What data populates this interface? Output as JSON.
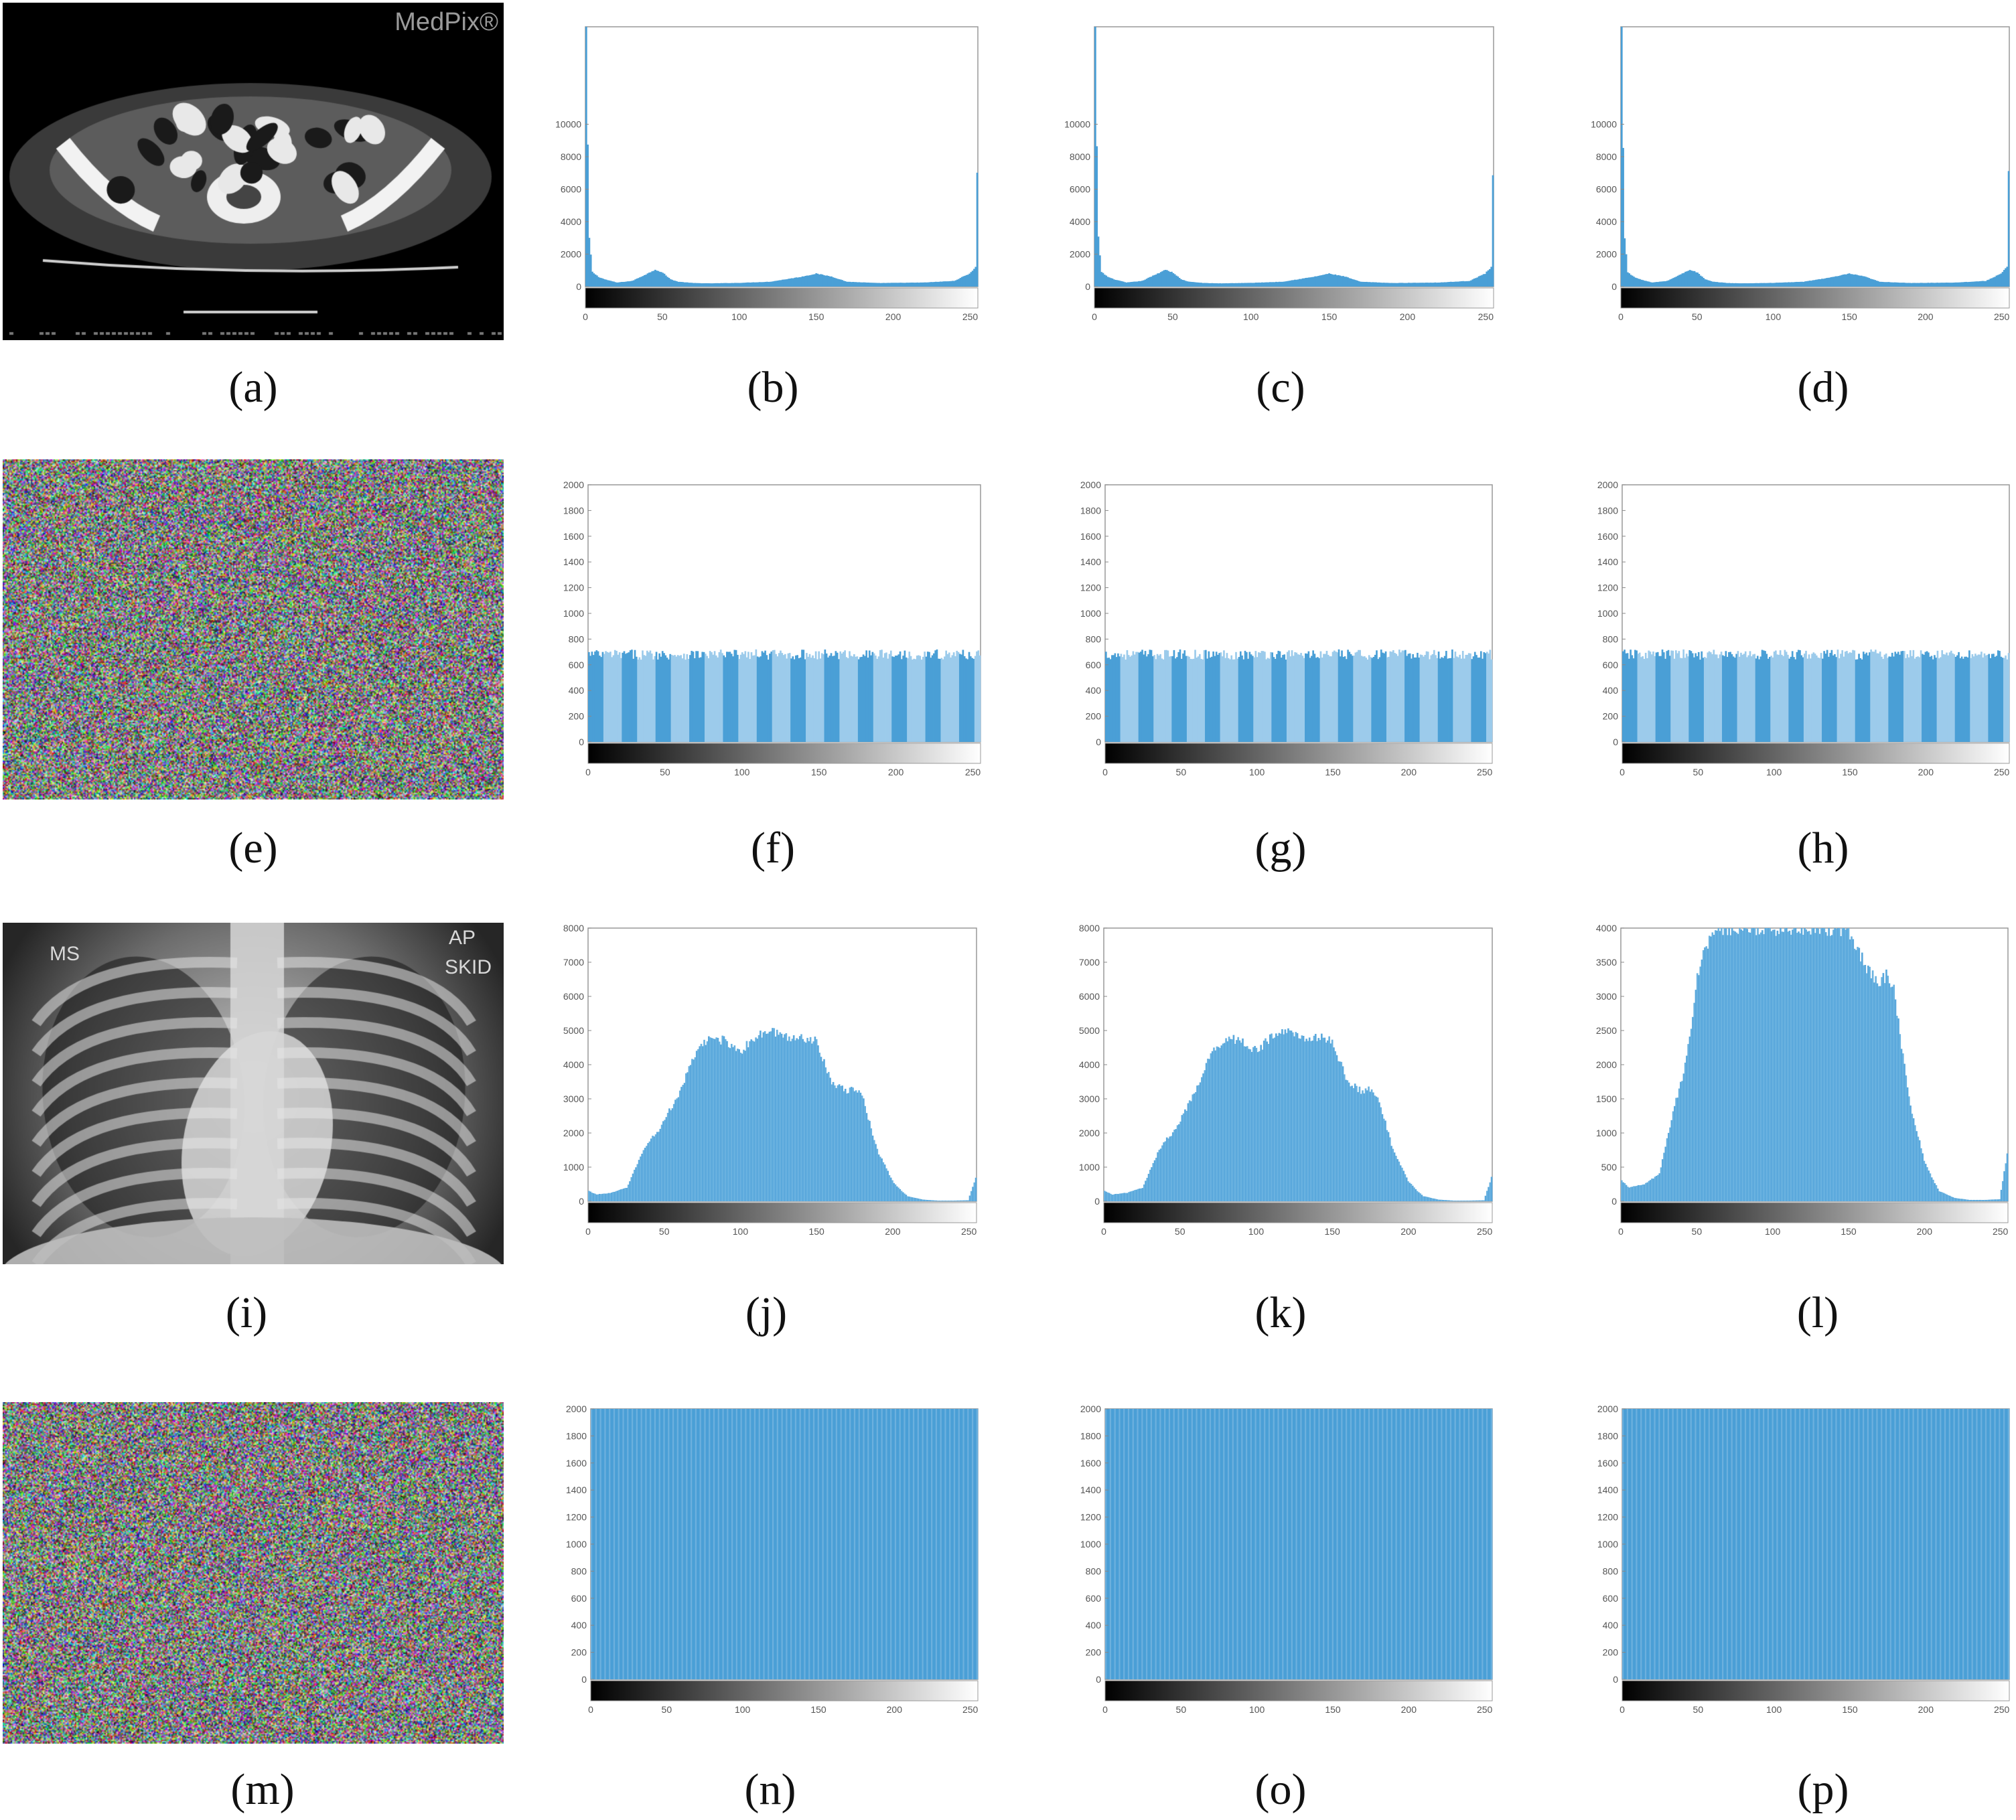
{
  "colors": {
    "bar": "#4a9fd6",
    "bar_light": "#9ccbeb",
    "axis": "#444444",
    "tick_text": "#555555"
  },
  "images": {
    "a": {
      "kind": "ct_scan",
      "watermark": "MedPix®"
    },
    "e": {
      "kind": "rgb_noise"
    },
    "i": {
      "kind": "chest_xray",
      "label_left": "MS",
      "label_right_top": "AP",
      "label_right_bottom": "SKID"
    },
    "m": {
      "kind": "rgb_noise"
    }
  },
  "captions": [
    "(a)",
    "(b)",
    "(c)",
    "(d)",
    "(e)",
    "(f)",
    "(g)",
    "(h)",
    "(i)",
    "(j)",
    "(k)",
    "(l)",
    "(m)",
    "(n)",
    "(o)",
    "(p)"
  ],
  "chart_data": [
    {
      "panel": "b",
      "type": "bar",
      "shape": "ct_sparse",
      "xlim": [
        0,
        255
      ],
      "ylim": [
        0,
        16000
      ],
      "yticks": [
        "0",
        "2000",
        "4000",
        "6000",
        "8000",
        "10000"
      ],
      "xticks": [
        "0",
        "50",
        "100",
        "150",
        "200",
        "250"
      ],
      "x": [
        0,
        1,
        2,
        4,
        8,
        12,
        20,
        30,
        40,
        45,
        50,
        55,
        60,
        70,
        80,
        100,
        120,
        140,
        150,
        160,
        170,
        190,
        220,
        240,
        250,
        254,
        255
      ],
      "y": [
        16000,
        8500,
        3000,
        900,
        600,
        450,
        250,
        350,
        800,
        1050,
        850,
        450,
        300,
        220,
        200,
        230,
        300,
        600,
        800,
        620,
        300,
        220,
        250,
        350,
        800,
        1200,
        7000
      ]
    },
    {
      "panel": "c",
      "type": "bar",
      "shape": "ct_sparse",
      "xlim": [
        0,
        255
      ],
      "ylim": [
        0,
        16000
      ],
      "yticks": [
        "0",
        "2000",
        "4000",
        "6000",
        "8000",
        "10000"
      ],
      "xticks": [
        "0",
        "50",
        "100",
        "150",
        "200",
        "250"
      ],
      "x": [
        0,
        1,
        2,
        4,
        8,
        12,
        20,
        30,
        40,
        45,
        50,
        55,
        60,
        70,
        80,
        100,
        120,
        140,
        150,
        160,
        170,
        190,
        220,
        240,
        250,
        254,
        255
      ],
      "y": [
        16000,
        8500,
        3000,
        900,
        600,
        450,
        250,
        350,
        800,
        1050,
        850,
        450,
        300,
        220,
        200,
        230,
        300,
        600,
        800,
        620,
        300,
        220,
        250,
        350,
        800,
        1200,
        7000
      ]
    },
    {
      "panel": "d",
      "type": "bar",
      "shape": "ct_sparse",
      "xlim": [
        0,
        255
      ],
      "ylim": [
        0,
        16000
      ],
      "yticks": [
        "0",
        "2000",
        "4000",
        "6000",
        "8000",
        "10000"
      ],
      "xticks": [
        "0",
        "50",
        "100",
        "150",
        "200",
        "250"
      ],
      "x": [
        0,
        1,
        2,
        4,
        8,
        12,
        20,
        30,
        40,
        45,
        50,
        55,
        60,
        70,
        80,
        100,
        120,
        140,
        150,
        160,
        170,
        190,
        220,
        240,
        250,
        254,
        255
      ],
      "y": [
        16000,
        8500,
        3000,
        900,
        600,
        450,
        250,
        350,
        800,
        1050,
        850,
        450,
        300,
        220,
        200,
        230,
        300,
        600,
        800,
        620,
        300,
        220,
        250,
        350,
        800,
        1200,
        7000
      ]
    },
    {
      "panel": "f",
      "type": "bar",
      "shape": "uniform",
      "xlim": [
        0,
        255
      ],
      "ylim": [
        0,
        2000
      ],
      "yticks": [
        "0",
        "200",
        "400",
        "600",
        "800",
        "1000",
        "1200",
        "1400",
        "1600",
        "1800",
        "2000"
      ],
      "xticks": [
        "0",
        "50",
        "100",
        "150",
        "200",
        "250"
      ],
      "level": 680,
      "jitter": 40
    },
    {
      "panel": "g",
      "type": "bar",
      "shape": "uniform",
      "xlim": [
        0,
        255
      ],
      "ylim": [
        0,
        2000
      ],
      "yticks": [
        "0",
        "200",
        "400",
        "600",
        "800",
        "1000",
        "1200",
        "1400",
        "1600",
        "1800",
        "2000"
      ],
      "xticks": [
        "0",
        "50",
        "100",
        "150",
        "200",
        "250"
      ],
      "level": 680,
      "jitter": 40
    },
    {
      "panel": "h",
      "type": "bar",
      "shape": "uniform",
      "xlim": [
        0,
        255
      ],
      "ylim": [
        0,
        2000
      ],
      "yticks": [
        "0",
        "200",
        "400",
        "600",
        "800",
        "1000",
        "1200",
        "1400",
        "1600",
        "1800",
        "2000"
      ],
      "xticks": [
        "0",
        "50",
        "100",
        "150",
        "200",
        "250"
      ],
      "level": 680,
      "jitter": 40
    },
    {
      "panel": "j",
      "type": "bar",
      "shape": "xray",
      "xlim": [
        0,
        255
      ],
      "ylim": [
        0,
        8000
      ],
      "yticks": [
        "0",
        "1000",
        "2000",
        "3000",
        "4000",
        "5000",
        "6000",
        "7000",
        "8000"
      ],
      "xticks": [
        "0",
        "50",
        "100",
        "150",
        "200",
        "250"
      ],
      "x": [
        0,
        5,
        15,
        25,
        30,
        35,
        40,
        45,
        50,
        60,
        70,
        80,
        90,
        100,
        110,
        120,
        130,
        140,
        150,
        160,
        170,
        175,
        180,
        190,
        200,
        205,
        210,
        220,
        230,
        240,
        250,
        255
      ],
      "y": [
        300,
        200,
        250,
        400,
        900,
        1400,
        1800,
        2000,
        2400,
        3200,
        4300,
        4800,
        4700,
        4400,
        4800,
        5000,
        4800,
        4800,
        4700,
        3500,
        3200,
        3300,
        3100,
        1500,
        600,
        350,
        150,
        50,
        20,
        20,
        30,
        700
      ]
    },
    {
      "panel": "k",
      "type": "bar",
      "shape": "xray",
      "xlim": [
        0,
        255
      ],
      "ylim": [
        0,
        8000
      ],
      "yticks": [
        "0",
        "1000",
        "2000",
        "3000",
        "4000",
        "5000",
        "6000",
        "7000",
        "8000"
      ],
      "xticks": [
        "0",
        "50",
        "100",
        "150",
        "200",
        "250"
      ],
      "x": [
        0,
        5,
        15,
        25,
        30,
        35,
        40,
        45,
        50,
        60,
        70,
        80,
        90,
        100,
        110,
        120,
        130,
        140,
        150,
        160,
        170,
        175,
        180,
        190,
        200,
        205,
        210,
        220,
        230,
        240,
        250,
        255
      ],
      "y": [
        300,
        200,
        250,
        400,
        900,
        1400,
        1800,
        2000,
        2400,
        3200,
        4300,
        4800,
        4700,
        4400,
        4800,
        5000,
        4800,
        4800,
        4700,
        3500,
        3200,
        3300,
        3100,
        1500,
        600,
        350,
        150,
        50,
        20,
        20,
        30,
        700
      ]
    },
    {
      "panel": "l",
      "type": "bar",
      "shape": "xray_clipped",
      "xlim": [
        0,
        255
      ],
      "ylim": [
        0,
        4000
      ],
      "yticks": [
        "0",
        "500",
        "1000",
        "1500",
        "2000",
        "2500",
        "3000",
        "3500",
        "4000"
      ],
      "xticks": [
        "0",
        "50",
        "100",
        "150",
        "200",
        "250"
      ],
      "x": [
        0,
        5,
        15,
        25,
        30,
        35,
        40,
        45,
        50,
        60,
        70,
        80,
        90,
        100,
        110,
        120,
        130,
        140,
        150,
        160,
        170,
        175,
        180,
        190,
        200,
        205,
        210,
        220,
        230,
        240,
        250,
        255
      ],
      "y": [
        300,
        200,
        250,
        400,
        900,
        1400,
        1800,
        2400,
        3300,
        4000,
        4000,
        4000,
        4000,
        4000,
        4000,
        4000,
        4000,
        4000,
        4000,
        3500,
        3200,
        3300,
        3100,
        1500,
        600,
        350,
        150,
        50,
        20,
        20,
        30,
        700
      ]
    },
    {
      "panel": "n",
      "type": "bar",
      "shape": "full",
      "xlim": [
        0,
        255
      ],
      "ylim": [
        0,
        2000
      ],
      "yticks": [
        "0",
        "200",
        "400",
        "600",
        "800",
        "1000",
        "1200",
        "1400",
        "1600",
        "1800",
        "2000"
      ],
      "xticks": [
        "0",
        "50",
        "100",
        "150",
        "200",
        "250"
      ],
      "level": 2000
    },
    {
      "panel": "o",
      "type": "bar",
      "shape": "full",
      "xlim": [
        0,
        255
      ],
      "ylim": [
        0,
        2000
      ],
      "yticks": [
        "0",
        "200",
        "400",
        "600",
        "800",
        "1000",
        "1200",
        "1400",
        "1600",
        "1800",
        "2000"
      ],
      "xticks": [
        "0",
        "50",
        "100",
        "150",
        "200",
        "250"
      ],
      "level": 2000
    },
    {
      "panel": "p",
      "type": "bar",
      "shape": "full",
      "xlim": [
        0,
        255
      ],
      "ylim": [
        0,
        2000
      ],
      "yticks": [
        "0",
        "200",
        "400",
        "600",
        "800",
        "1000",
        "1200",
        "1400",
        "1600",
        "1800",
        "2000"
      ],
      "xticks": [
        "0",
        "50",
        "100",
        "150",
        "200",
        "250"
      ],
      "level": 2000
    }
  ]
}
